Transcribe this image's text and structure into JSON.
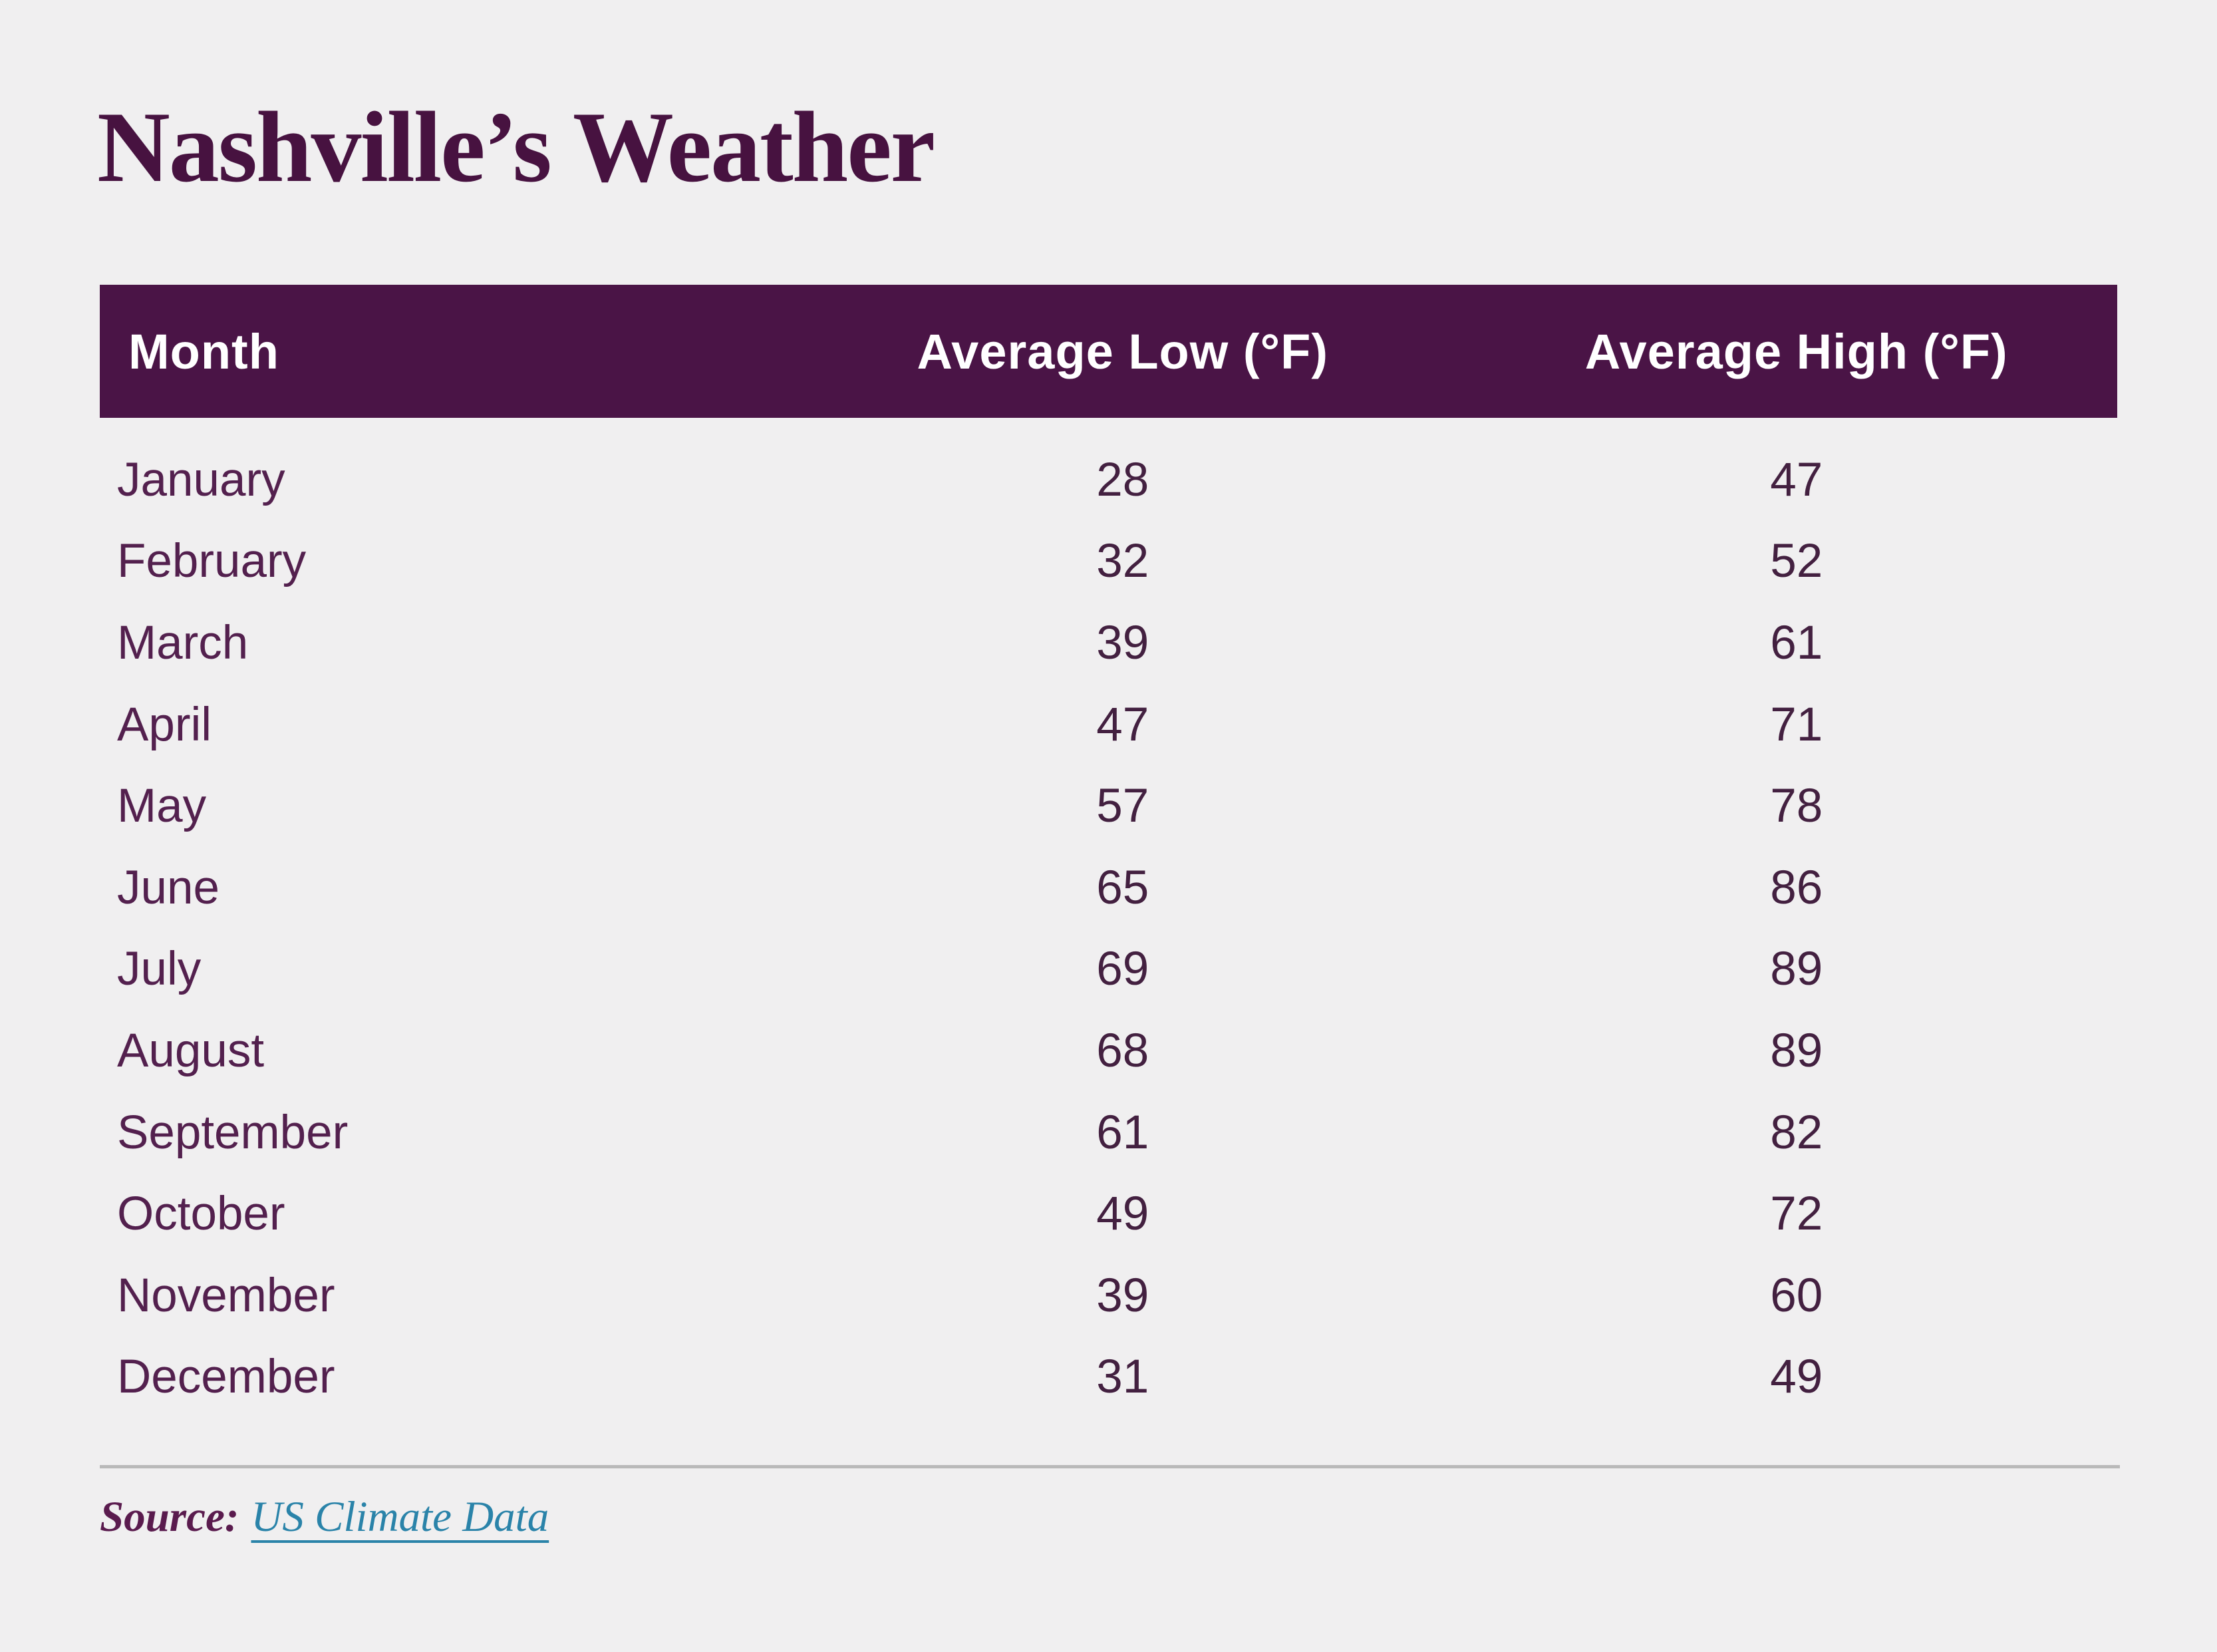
{
  "page": {
    "title": "Nashville’s Weather"
  },
  "colors": {
    "page_bg": "#f0eff0",
    "title_color": "#471240",
    "header_bg": "#4a1446",
    "header_text": "#ffffff",
    "month_color": "#53204e",
    "number_color": "#432040",
    "divider_color": "#b9b9b9",
    "source_label_color": "#5a1b4e",
    "link_color": "#2a83a9"
  },
  "table": {
    "columns": [
      "Month",
      "Average Low (°F)",
      "Average High (°F)"
    ],
    "rows": [
      {
        "month": "January",
        "low": "28",
        "high": "47"
      },
      {
        "month": "February",
        "low": "32",
        "high": "52"
      },
      {
        "month": "March",
        "low": "39",
        "high": "61"
      },
      {
        "month": "April",
        "low": "47",
        "high": "71"
      },
      {
        "month": "May",
        "low": "57",
        "high": "78"
      },
      {
        "month": "June",
        "low": "65",
        "high": "86"
      },
      {
        "month": "July",
        "low": "69",
        "high": "89"
      },
      {
        "month": "August",
        "low": "68",
        "high": "89"
      },
      {
        "month": "September",
        "low": "61",
        "high": "82"
      },
      {
        "month": "October",
        "low": "49",
        "high": "72"
      },
      {
        "month": "November",
        "low": "39",
        "high": "60"
      },
      {
        "month": "December",
        "low": "31",
        "high": "49"
      }
    ]
  },
  "footer": {
    "source_label": "Source:",
    "source_link": "US Climate Data"
  },
  "chart_data": {
    "type": "table",
    "title": "Nashville’s Weather",
    "categories": [
      "January",
      "February",
      "March",
      "April",
      "May",
      "June",
      "July",
      "August",
      "September",
      "October",
      "November",
      "December"
    ],
    "series": [
      {
        "name": "Average Low (°F)",
        "values": [
          28,
          32,
          39,
          47,
          57,
          65,
          69,
          68,
          61,
          49,
          39,
          31
        ]
      },
      {
        "name": "Average High (°F)",
        "values": [
          47,
          52,
          61,
          71,
          78,
          86,
          89,
          89,
          82,
          72,
          60,
          49
        ]
      }
    ],
    "source": "US Climate Data",
    "unit": "°F"
  }
}
